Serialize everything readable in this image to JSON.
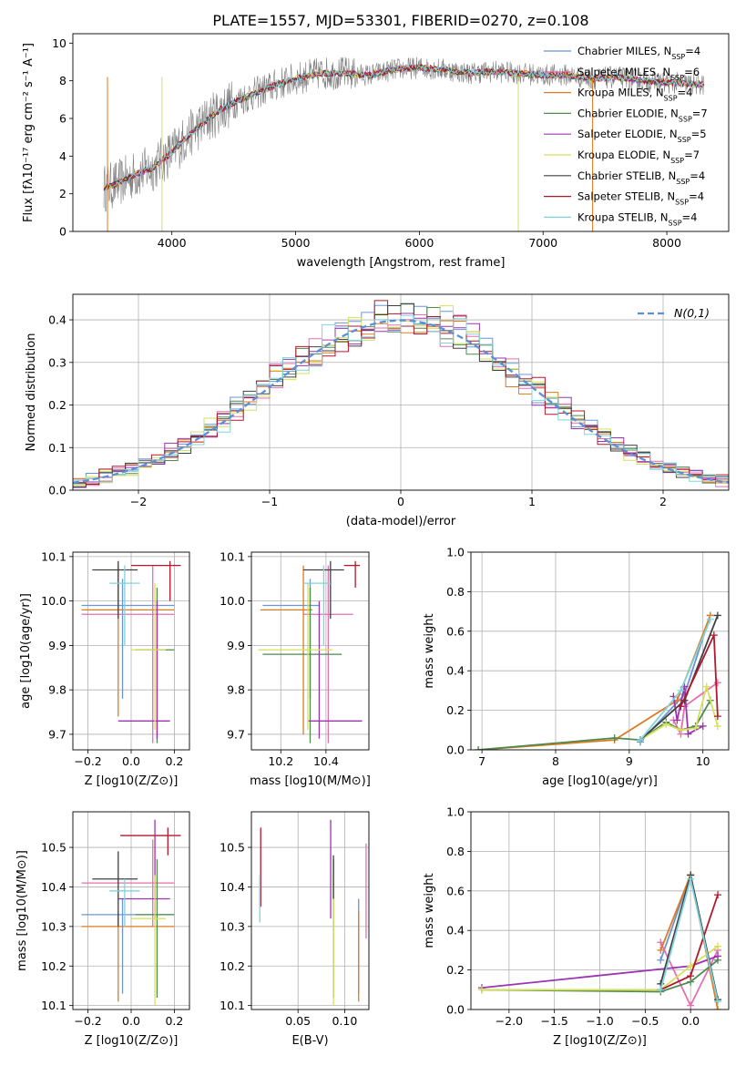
{
  "colors": {
    "chabrier_miles": "#6b95d9",
    "salpeter_miles": "#e56fb0",
    "kroupa_miles": "#e07a1e",
    "chabrier_elodie": "#4f8a4f",
    "salpeter_elodie": "#9b34b0",
    "kroupa_elodie": "#d5e05a",
    "chabrier_stelib": "#404040",
    "salpeter_stelib": "#b2182b",
    "kroupa_stelib": "#7fd3dc",
    "data": "#808080",
    "normal": "#5b8fd6",
    "grid": "#b0b0b0"
  },
  "chart_data": [
    {
      "id": "spectrum",
      "type": "line",
      "title": "PLATE=1557, MJD=53301, FIBERID=0270, z=0.108",
      "xlabel": "wavelength [Angstrom, rest frame]",
      "ylabel": "Flux [fλ10⁻¹⁷ erg cm⁻² s⁻¹ A⁻¹]",
      "xlim": [
        3200,
        8500
      ],
      "ylim": [
        0,
        10.5
      ],
      "xticks": [
        "4000",
        "5000",
        "6000",
        "7000",
        "8000"
      ],
      "yticks": [
        "0",
        "2",
        "4",
        "6",
        "8",
        "10"
      ],
      "grid": false,
      "legend_position": "right",
      "legend": [
        "Chabrier MILES, N_SSP=4",
        "Salpeter MILES, N_SSP=6",
        "Kroupa MILES, N_SSP=4",
        "Chabrier ELODIE, N_SSP=7",
        "Salpeter ELODIE, N_SSP=5",
        "Kroupa ELODIE, N_SSP=7",
        "Chabrier STELIB, N_SSP=4",
        "Salpeter STELIB, N_SSP=4",
        "Kroupa STELIB, N_SSP=4"
      ],
      "series": [
        {
          "x": [
            3450,
            3550,
            3700,
            3850,
            4000,
            4150,
            4300,
            4400,
            4550,
            4700,
            4850,
            5000,
            5200,
            5400,
            5600,
            5800,
            6000,
            6200,
            6400,
            6600,
            6800,
            7000,
            7200,
            7400,
            7600,
            7800,
            8000,
            8300
          ],
          "y": [
            2.3,
            2.5,
            3.0,
            3.4,
            4.2,
            5.2,
            6.0,
            6.5,
            7.0,
            7.4,
            7.8,
            8.1,
            8.4,
            8.4,
            8.3,
            8.6,
            8.7,
            8.6,
            8.4,
            8.5,
            8.4,
            8.3,
            8.3,
            8.1,
            8.2,
            8.0,
            7.9,
            7.8
          ]
        }
      ]
    },
    {
      "id": "residuals",
      "type": "histogram",
      "xlabel": "(data-model)/error",
      "ylabel": "Normed distribution",
      "xlim": [
        -2.5,
        2.5
      ],
      "ylim": [
        0,
        0.46
      ],
      "xticks": [
        "−2",
        "−1",
        "0",
        "1",
        "2"
      ],
      "yticks": [
        "0.0",
        "0.1",
        "0.2",
        "0.3",
        "0.4"
      ],
      "grid": true,
      "legend": [
        "N(0,1)"
      ],
      "legend_position": "top-right",
      "bin_width": 0.1
    },
    {
      "id": "age_vs_z",
      "type": "errorbar",
      "xlabel": "Z [log10(Z/Z⊙)]",
      "ylabel": "age  [log10(age/yr)]",
      "xlim": [
        -0.27,
        0.27
      ],
      "ylim": [
        9.665,
        10.11
      ],
      "xticks": [
        "−0.2",
        "0.0",
        "0.2"
      ],
      "yticks": [
        "9.7",
        "9.8",
        "9.9",
        "10.0",
        "10.1"
      ],
      "points": [
        {
          "s": "chabrier_miles",
          "x": -0.04,
          "y": 9.99,
          "xe": [
            -0.23,
            0.2
          ],
          "ye": [
            9.78,
            10.05
          ]
        },
        {
          "s": "salpeter_miles",
          "x": 0.1,
          "y": 9.97,
          "xe": [
            -0.23,
            0.2
          ],
          "ye": [
            9.68,
            10.08
          ]
        },
        {
          "s": "kroupa_miles",
          "x": -0.06,
          "y": 9.98,
          "xe": [
            -0.23,
            0.2
          ],
          "ye": [
            9.74,
            10.08
          ]
        },
        {
          "s": "chabrier_elodie",
          "x": 0.12,
          "y": 9.89,
          "xe": [
            0.02,
            0.2
          ],
          "ye": [
            9.68,
            10.03
          ]
        },
        {
          "s": "salpeter_elodie",
          "x": 0.12,
          "y": 9.73,
          "xe": [
            -0.06,
            0.18
          ],
          "ye": [
            9.69,
            10.0
          ]
        },
        {
          "s": "kroupa_elodie",
          "x": 0.11,
          "y": 9.89,
          "xe": [
            0.0,
            0.16
          ],
          "ye": [
            9.71,
            10.04
          ]
        },
        {
          "s": "chabrier_stelib",
          "x": -0.06,
          "y": 10.07,
          "xe": [
            -0.18,
            0.03
          ],
          "ye": [
            9.96,
            10.09
          ]
        },
        {
          "s": "salpeter_stelib",
          "x": 0.18,
          "y": 10.08,
          "xe": [
            0.0,
            0.23
          ],
          "ye": [
            10.0,
            10.09
          ]
        },
        {
          "s": "kroupa_stelib",
          "x": -0.03,
          "y": 10.04,
          "xe": [
            -0.1,
            0.04
          ],
          "ye": [
            9.9,
            10.08
          ]
        }
      ]
    },
    {
      "id": "age_vs_mass",
      "type": "errorbar",
      "xlabel": "mass [log10(M/M⊙)]",
      "ylabel": "",
      "xlim": [
        10.07,
        10.59
      ],
      "ylim": [
        9.665,
        10.11
      ],
      "xticks": [
        "10.2",
        "10.4"
      ],
      "yticks": [
        "9.7",
        "9.8",
        "9.9",
        "10.0",
        "10.1"
      ],
      "points": [
        {
          "s": "chabrier_miles",
          "x": 10.33,
          "y": 9.99,
          "xe": [
            10.12,
            10.37
          ],
          "ye": [
            9.78,
            10.05
          ]
        },
        {
          "s": "salpeter_miles",
          "x": 10.41,
          "y": 9.97,
          "xe": [
            10.3,
            10.52
          ],
          "ye": [
            9.68,
            10.08
          ]
        },
        {
          "s": "kroupa_miles",
          "x": 10.3,
          "y": 9.98,
          "xe": [
            10.11,
            10.34
          ],
          "ye": [
            9.7,
            10.08
          ]
        },
        {
          "s": "chabrier_elodie",
          "x": 10.33,
          "y": 9.88,
          "xe": [
            10.12,
            10.47
          ],
          "ye": [
            9.68,
            10.03
          ]
        },
        {
          "s": "salpeter_elodie",
          "x": 10.37,
          "y": 9.73,
          "xe": [
            10.32,
            10.56
          ],
          "ye": [
            9.69,
            10.0
          ]
        },
        {
          "s": "kroupa_elodie",
          "x": 10.32,
          "y": 9.89,
          "xe": [
            10.1,
            10.43
          ],
          "ye": [
            9.71,
            10.04
          ]
        },
        {
          "s": "chabrier_stelib",
          "x": 10.42,
          "y": 10.07,
          "xe": [
            10.3,
            10.48
          ],
          "ye": [
            9.96,
            10.09
          ]
        },
        {
          "s": "salpeter_stelib",
          "x": 10.53,
          "y": 10.08,
          "xe": [
            10.48,
            10.55
          ],
          "ye": [
            10.03,
            10.09
          ]
        },
        {
          "s": "kroupa_stelib",
          "x": 10.39,
          "y": 10.04,
          "xe": [
            10.3,
            10.42
          ],
          "ye": [
            9.9,
            10.08
          ]
        }
      ]
    },
    {
      "id": "weight_vs_age",
      "type": "line",
      "xlabel": "age  [log10(age/yr)]",
      "ylabel": "mass weight",
      "xlim": [
        6.85,
        10.35
      ],
      "ylim": [
        0,
        1.0
      ],
      "xticks": [
        "7",
        "8",
        "9",
        "10"
      ],
      "yticks": [
        "0.0",
        "0.2",
        "0.4",
        "0.6",
        "0.8",
        "1.0"
      ],
      "grid": true,
      "series": [
        {
          "s": "chabrier_miles",
          "x": [
            9.15,
            9.75,
            10.1
          ],
          "y": [
            0.04,
            0.28,
            0.68
          ]
        },
        {
          "s": "salpeter_miles",
          "x": [
            9.6,
            9.7,
            9.75,
            10.2
          ],
          "y": [
            0.15,
            0.08,
            0.22,
            0.34
          ]
        },
        {
          "s": "kroupa_miles",
          "x": [
            6.95,
            8.8,
            9.65,
            10.1
          ],
          "y": [
            0.0,
            0.05,
            0.25,
            0.68
          ]
        },
        {
          "s": "chabrier_elodie",
          "x": [
            6.95,
            8.8,
            9.15,
            9.5,
            9.7,
            9.9,
            10.1
          ],
          "y": [
            0.0,
            0.06,
            0.05,
            0.14,
            0.1,
            0.12,
            0.25
          ]
        },
        {
          "s": "salpeter_elodie",
          "x": [
            9.6,
            9.65,
            9.75,
            9.8,
            10.0
          ],
          "y": [
            0.27,
            0.15,
            0.32,
            0.08,
            0.12
          ]
        },
        {
          "s": "kroupa_elodie",
          "x": [
            9.15,
            9.5,
            9.7,
            9.9,
            10.05,
            10.2
          ],
          "y": [
            0.05,
            0.13,
            0.1,
            0.11,
            0.32,
            0.12
          ]
        },
        {
          "s": "chabrier_stelib",
          "x": [
            9.15,
            9.75,
            10.2
          ],
          "y": [
            0.05,
            0.25,
            0.68
          ]
        },
        {
          "s": "salpeter_stelib",
          "x": [
            9.7,
            10.15,
            10.2
          ],
          "y": [
            0.22,
            0.58,
            0.17
          ]
        },
        {
          "s": "kroupa_stelib",
          "x": [
            9.15,
            9.7,
            10.1
          ],
          "y": [
            0.05,
            0.3,
            0.66
          ]
        }
      ]
    },
    {
      "id": "mass_vs_z",
      "type": "errorbar",
      "xlabel": "Z [log10(Z/Z⊙)]",
      "ylabel": "mass [log10(M/M⊙)]",
      "xlim": [
        -0.27,
        0.27
      ],
      "ylim": [
        10.09,
        10.59
      ],
      "xticks": [
        "−0.2",
        "0.0",
        "0.2"
      ],
      "yticks": [
        "10.1",
        "10.2",
        "10.3",
        "10.4",
        "10.5"
      ],
      "points": [
        {
          "s": "chabrier_miles",
          "x": -0.04,
          "y": 10.33,
          "xe": [
            -0.23,
            0.2
          ],
          "ye": [
            10.13,
            10.37
          ]
        },
        {
          "s": "salpeter_miles",
          "x": 0.1,
          "y": 10.41,
          "xe": [
            -0.23,
            0.2
          ],
          "ye": [
            10.3,
            10.52
          ]
        },
        {
          "s": "kroupa_miles",
          "x": -0.06,
          "y": 10.3,
          "xe": [
            -0.23,
            0.2
          ],
          "ye": [
            10.11,
            10.34
          ]
        },
        {
          "s": "chabrier_elodie",
          "x": 0.12,
          "y": 10.33,
          "xe": [
            0.02,
            0.2
          ],
          "ye": [
            10.12,
            10.47
          ]
        },
        {
          "s": "salpeter_elodie",
          "x": 0.11,
          "y": 10.37,
          "xe": [
            -0.06,
            0.18
          ],
          "ye": [
            10.32,
            10.57
          ]
        },
        {
          "s": "kroupa_elodie",
          "x": 0.11,
          "y": 10.32,
          "xe": [
            0.0,
            0.16
          ],
          "ye": [
            10.1,
            10.43
          ]
        },
        {
          "s": "chabrier_stelib",
          "x": -0.06,
          "y": 10.42,
          "xe": [
            -0.18,
            0.03
          ],
          "ye": [
            10.3,
            10.49
          ]
        },
        {
          "s": "salpeter_stelib",
          "x": 0.17,
          "y": 10.53,
          "xe": [
            -0.05,
            0.23
          ],
          "ye": [
            10.48,
            10.55
          ]
        },
        {
          "s": "kroupa_stelib",
          "x": -0.03,
          "y": 10.39,
          "xe": [
            -0.1,
            0.04
          ],
          "ye": [
            10.3,
            10.42
          ]
        }
      ]
    },
    {
      "id": "mass_vs_ebv",
      "type": "errorbar",
      "xlabel": "E(B-V)",
      "ylabel": "",
      "xlim": [
        0.0,
        0.126
      ],
      "ylim": [
        10.09,
        10.59
      ],
      "xticks": [
        "0.05",
        "0.10"
      ],
      "yticks": [
        "10.1",
        "10.2",
        "10.3",
        "10.4",
        "10.5"
      ],
      "points": [
        {
          "s": "chabrier_miles",
          "x": 0.115,
          "y": 10.33,
          "ye": [
            10.13,
            10.37
          ]
        },
        {
          "s": "salpeter_miles",
          "x": 0.123,
          "y": 10.41,
          "ye": [
            10.27,
            10.51
          ]
        },
        {
          "s": "kroupa_miles",
          "x": 0.115,
          "y": 10.3,
          "ye": [
            10.11,
            10.34
          ]
        },
        {
          "s": "chabrier_elodie",
          "x": 0.088,
          "y": 10.33,
          "ye": [
            10.12,
            10.47
          ]
        },
        {
          "s": "salpeter_elodie",
          "x": 0.085,
          "y": 10.37,
          "ye": [
            10.32,
            10.57
          ]
        },
        {
          "s": "kroupa_elodie",
          "x": 0.088,
          "y": 10.32,
          "ye": [
            10.1,
            10.43
          ]
        },
        {
          "s": "chabrier_stelib",
          "x": 0.088,
          "y": 10.42,
          "ye": [
            10.37,
            10.48
          ]
        },
        {
          "s": "salpeter_stelib",
          "x": 0.01,
          "y": 10.45,
          "ye": [
            10.35,
            10.55
          ]
        },
        {
          "s": "kroupa_stelib",
          "x": 0.009,
          "y": 10.38,
          "ye": [
            10.31,
            10.43
          ]
        }
      ]
    },
    {
      "id": "weight_vs_z",
      "type": "line",
      "xlabel": "Z [log10(Z/Z⊙)]",
      "ylabel": "mass weight",
      "xlim": [
        -2.42,
        0.42
      ],
      "ylim": [
        0,
        1.0
      ],
      "xticks": [
        "−2.0",
        "−1.5",
        "−1.0",
        "−0.5",
        "0.0"
      ],
      "yticks": [
        "0.0",
        "0.2",
        "0.4",
        "0.6",
        "0.8",
        "1.0"
      ],
      "grid": true,
      "series": [
        {
          "s": "chabrier_miles",
          "x": [
            -0.33,
            0.0,
            0.3
          ],
          "y": [
            0.25,
            0.68,
            0.05
          ]
        },
        {
          "s": "salpeter_miles",
          "x": [
            -0.33,
            0.0,
            0.3
          ],
          "y": [
            0.34,
            0.02,
            0.3
          ]
        },
        {
          "s": "kroupa_miles",
          "x": [
            -0.33,
            0.0,
            0.3
          ],
          "y": [
            0.3,
            0.68,
            0.0
          ]
        },
        {
          "s": "chabrier_elodie",
          "x": [
            -2.3,
            -0.33,
            0.0,
            0.3
          ],
          "y": [
            0.1,
            0.09,
            0.14,
            0.25
          ]
        },
        {
          "s": "salpeter_elodie",
          "x": [
            -2.3,
            0.0,
            0.3
          ],
          "y": [
            0.11,
            0.22,
            0.27
          ]
        },
        {
          "s": "kroupa_elodie",
          "x": [
            -2.3,
            -0.33,
            0.0,
            0.3
          ],
          "y": [
            0.1,
            0.1,
            0.22,
            0.32
          ]
        },
        {
          "s": "chabrier_stelib",
          "x": [
            -0.33,
            0.0,
            0.3
          ],
          "y": [
            0.13,
            0.68,
            0.05
          ]
        },
        {
          "s": "salpeter_stelib",
          "x": [
            -0.33,
            0.0,
            0.3
          ],
          "y": [
            0.1,
            0.17,
            0.58
          ]
        },
        {
          "s": "kroupa_stelib",
          "x": [
            -0.33,
            0.0,
            0.3
          ],
          "y": [
            0.1,
            0.66,
            0.04
          ]
        }
      ]
    }
  ]
}
